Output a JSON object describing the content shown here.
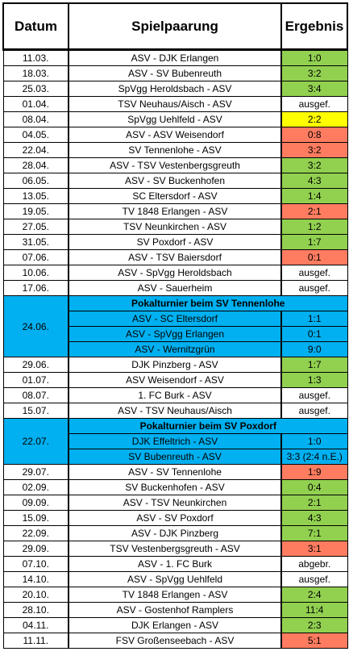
{
  "header": {
    "date": "Datum",
    "match": "Spielpaarung",
    "result": "Ergebnis"
  },
  "colors": {
    "win": "#92d050",
    "draw": "#ffff00",
    "loss": "#ff7c60",
    "neutral": "#ffffff",
    "cup": "#00b0f0"
  },
  "rows": [
    {
      "type": "match",
      "date": "11.03.",
      "match": "ASV - DJK Erlangen",
      "result": "1:0",
      "status": "win"
    },
    {
      "type": "match",
      "date": "18.03.",
      "match": "ASV - SV Bubenreuth",
      "result": "3:2",
      "status": "win"
    },
    {
      "type": "match",
      "date": "25.03.",
      "match": "SpVgg Heroldsbach - ASV",
      "result": "3:4",
      "status": "win"
    },
    {
      "type": "match",
      "date": "01.04.",
      "match": "TSV Neuhaus/Aisch - ASV",
      "result": "ausgef.",
      "status": "neutral"
    },
    {
      "type": "match",
      "date": "08.04.",
      "match": "SpVgg Uehlfeld - ASV",
      "result": "2:2",
      "status": "draw"
    },
    {
      "type": "match",
      "date": "04.05.",
      "match": "ASV - ASV Weisendorf",
      "result": "0:8",
      "status": "loss"
    },
    {
      "type": "match",
      "date": "22.04.",
      "match": "SV Tennenlohe - ASV",
      "result": "3:2",
      "status": "loss"
    },
    {
      "type": "match",
      "date": "28.04.",
      "match": "ASV - TSV Vestenbergsgreuth",
      "result": "3:2",
      "status": "win"
    },
    {
      "type": "match",
      "date": "06.05.",
      "match": "ASV - SV Buckenhofen",
      "result": "4:3",
      "status": "win"
    },
    {
      "type": "match",
      "date": "13.05.",
      "match": "SC Eltersdorf - ASV",
      "result": "1:4",
      "status": "win"
    },
    {
      "type": "match",
      "date": "19.05.",
      "match": "TV 1848 Erlangen - ASV",
      "result": "2:1",
      "status": "loss"
    },
    {
      "type": "match",
      "date": "27.05.",
      "match": "TSV Neunkirchen - ASV",
      "result": "1:2",
      "status": "win"
    },
    {
      "type": "match",
      "date": "31.05.",
      "match": "SV Poxdorf - ASV",
      "result": "1:7",
      "status": "win"
    },
    {
      "type": "match",
      "date": "07.06.",
      "match": "ASV - TSV Baiersdorf",
      "result": "0:1",
      "status": "loss"
    },
    {
      "type": "match",
      "date": "10.06.",
      "match": "ASV - SpVgg Heroldsbach",
      "result": "ausgef.",
      "status": "neutral"
    },
    {
      "type": "match",
      "date": "17.06.",
      "match": "ASV - Sauerheim",
      "result": "ausgef.",
      "status": "neutral"
    },
    {
      "type": "cup",
      "date": "24.06.",
      "title": "Pokalturnier beim SV Tennenlohe",
      "games": [
        {
          "match": "ASV - SC Eltersdorf",
          "result": "1:1"
        },
        {
          "match": "ASV - SpVgg Erlangen",
          "result": "0:1"
        },
        {
          "match": "ASV - Wernitzgrün",
          "result": "9:0"
        }
      ]
    },
    {
      "type": "match",
      "date": "29.06.",
      "match": "DJK Pinzberg - ASV",
      "result": "1:7",
      "status": "win"
    },
    {
      "type": "match",
      "date": "01.07.",
      "match": "ASV Weisendorf - ASV",
      "result": "1:3",
      "status": "win"
    },
    {
      "type": "match",
      "date": "08.07.",
      "match": "1. FC Burk - ASV",
      "result": "ausgef.",
      "status": "neutral"
    },
    {
      "type": "match",
      "date": "15.07.",
      "match": "ASV - TSV Neuhaus/Aisch",
      "result": "ausgef.",
      "status": "neutral"
    },
    {
      "type": "cup",
      "date": "22.07.",
      "title": "Pokalturnier beim SV Poxdorf",
      "games": [
        {
          "match": "DJK Effeltrich - ASV",
          "result": "1:0"
        },
        {
          "match": "SV Bubenreuth - ASV",
          "result": "3:3 (2:4 n.E.)"
        }
      ]
    },
    {
      "type": "match",
      "date": "29.07.",
      "match": "ASV - SV Tennenlohe",
      "result": "1:9",
      "status": "loss"
    },
    {
      "type": "match",
      "date": "02.09.",
      "match": "SV Buckenhofen - ASV",
      "result": "0:4",
      "status": "win"
    },
    {
      "type": "match",
      "date": "09.09.",
      "match": "ASV - TSV Neunkirchen",
      "result": "2:1",
      "status": "win"
    },
    {
      "type": "match",
      "date": "15.09.",
      "match": "ASV - SV Poxdorf",
      "result": "4:3",
      "status": "win"
    },
    {
      "type": "match",
      "date": "22.09.",
      "match": "ASV - DJK Pinzberg",
      "result": "7:1",
      "status": "win"
    },
    {
      "type": "match",
      "date": "29.09.",
      "match": "TSV Vestenbergsgreuth - ASV",
      "result": "3:1",
      "status": "loss"
    },
    {
      "type": "match",
      "date": "07.10.",
      "match": "ASV - 1. FC Burk",
      "result": "abgebr.",
      "status": "neutral"
    },
    {
      "type": "match",
      "date": "14.10.",
      "match": "ASV - SpVgg Uehlfeld",
      "result": "ausgef.",
      "status": "neutral"
    },
    {
      "type": "match",
      "date": "20.10.",
      "match": "TV 1848 Erlangen - ASV",
      "result": "2:4",
      "status": "win"
    },
    {
      "type": "match",
      "date": "28.10.",
      "match": "ASV - Gostenhof Ramplers",
      "result": "11:4",
      "status": "win"
    },
    {
      "type": "match",
      "date": "04.11.",
      "match": "DJK Erlangen - ASV",
      "result": "2:3",
      "status": "win"
    },
    {
      "type": "match",
      "date": "11.11.",
      "match": "FSV Großenseebach - ASV",
      "result": "5:1",
      "status": "loss"
    }
  ]
}
